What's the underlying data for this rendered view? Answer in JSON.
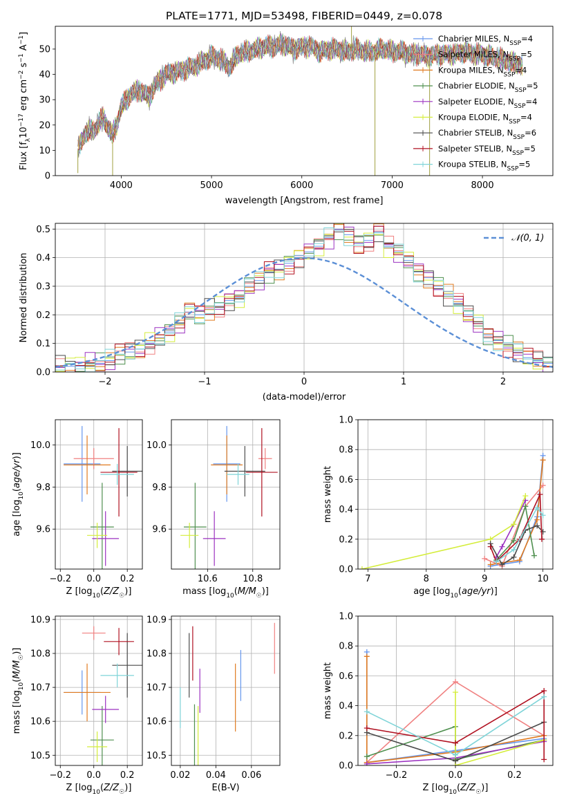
{
  "figure": {
    "title": "PLATE=1771, MJD=53498, FIBERID=0449, z=0.078",
    "colors": {
      "Chabrier MILES": "#6495ed",
      "Salpeter MILES": "#f08080",
      "Kroupa MILES": "#e07a1f",
      "Chabrier ELODIE": "#4e8f4e",
      "Salpeter ELODIE": "#9b30c0",
      "Kroupa ELODIE": "#d4ed3a",
      "Chabrier STELIB": "#4a4a4a",
      "Salpeter STELIB": "#b01020",
      "Kroupa STELIB": "#7fd4d8"
    }
  },
  "chart_data": [
    {
      "id": "spectrum",
      "type": "line",
      "title": "PLATE=1771, MJD=53498, FIBERID=0449, z=0.078",
      "xlabel": "wavelength [Angstrom, rest frame]",
      "ylabel": "Flux [f_λ10^-17 erg cm^-2 s^-1 A^-1]",
      "xlim": [
        3270,
        8780
      ],
      "ylim": [
        0,
        59
      ],
      "xticks": [
        4000,
        5000,
        6000,
        7000,
        8000
      ],
      "yticks": [
        0,
        10,
        20,
        30,
        40,
        50
      ],
      "grid": false,
      "legend_position": "top-right",
      "legend": [
        {
          "label": "Chabrier MILES, N",
          "sub": "SSP",
          "suffix": "=4",
          "color": "#6495ed"
        },
        {
          "label": "Salpeter MILES, N",
          "sub": "SSP",
          "suffix": "=5",
          "color": "#f08080"
        },
        {
          "label": "Kroupa MILES, N",
          "sub": "SSP",
          "suffix": "=4",
          "color": "#e07a1f"
        },
        {
          "label": "Chabrier ELODIE, N",
          "sub": "SSP",
          "suffix": "=5",
          "color": "#4e8f4e"
        },
        {
          "label": "Salpeter ELODIE, N",
          "sub": "SSP",
          "suffix": "=4",
          "color": "#9b30c0"
        },
        {
          "label": "Kroupa ELODIE, N",
          "sub": "SSP",
          "suffix": "=4",
          "color": "#d4ed3a"
        },
        {
          "label": "Chabrier STELIB, N",
          "sub": "SSP",
          "suffix": "=6",
          "color": "#4a4a4a"
        },
        {
          "label": "Salpeter STELIB, N",
          "sub": "SSP",
          "suffix": "=5",
          "color": "#b01020"
        },
        {
          "label": "Kroupa STELIB, N",
          "sub": "SSP",
          "suffix": "=5",
          "color": "#7fd4d8"
        }
      ],
      "data_series": {
        "name": "data",
        "color": "#7a7a7a",
        "x": [
          3520,
          3600,
          3700,
          3800,
          3900,
          3950,
          4000,
          4100,
          4200,
          4300,
          4400,
          4500,
          4600,
          4700,
          4800,
          4900,
          5000,
          5100,
          5200,
          5300,
          5400,
          5500,
          5600,
          5700,
          5800,
          5900,
          6000,
          6100,
          6200,
          6300,
          6400,
          6500,
          6600,
          6700,
          6800,
          6900,
          7000,
          7100,
          7200,
          7300,
          7400,
          7500,
          7600,
          7700,
          7800,
          7900,
          8000,
          8100,
          8200,
          8300,
          8400,
          8450
        ],
        "y": [
          10,
          17,
          18,
          23,
          16,
          20,
          27,
          32,
          34,
          31,
          37,
          40,
          41,
          42,
          43,
          45,
          47,
          46,
          43,
          48,
          49,
          50,
          51,
          51,
          52,
          50,
          51,
          51,
          49,
          50,
          50,
          49,
          50,
          49,
          49,
          50,
          49,
          49,
          48,
          48,
          47,
          48,
          48,
          48,
          49,
          48,
          48,
          47,
          46,
          45,
          44,
          43
        ]
      },
      "spikes": [
        {
          "x": 3520,
          "y": 1
        },
        {
          "x": 3905,
          "y": 0
        },
        {
          "x": 6810,
          "y": 0
        },
        {
          "x": 7415,
          "y": 0
        },
        {
          "x": 6550,
          "y": 59
        }
      ]
    },
    {
      "id": "residuals",
      "type": "line",
      "xlabel": "(data-model)/error",
      "ylabel": "Normed distribution",
      "xlim": [
        -2.5,
        2.5
      ],
      "ylim": [
        0,
        0.52
      ],
      "xticks": [
        -2,
        -1,
        0,
        1,
        2
      ],
      "yticks": [
        0.0,
        0.1,
        0.2,
        0.3,
        0.4,
        0.5
      ],
      "grid": true,
      "legend_position": "top-right",
      "reference": {
        "label": "𝒩(0, 1)",
        "color": "#5b8fd6",
        "style": "dashed",
        "mu": 0,
        "sigma": 1
      },
      "histogram_bins": {
        "start": -2.5,
        "width": 0.1,
        "count": 50
      },
      "series": [
        {
          "name": "Chabrier MILES",
          "color": "#6495ed",
          "values": [
            0.02,
            0.02,
            0.02,
            0.03,
            0.03,
            0.04,
            0.06,
            0.07,
            0.08,
            0.1,
            0.12,
            0.14,
            0.17,
            0.21,
            0.2,
            0.22,
            0.23,
            0.25,
            0.26,
            0.3,
            0.32,
            0.35,
            0.36,
            0.38,
            0.4,
            0.42,
            0.44,
            0.47,
            0.5,
            0.48,
            0.45,
            0.46,
            0.49,
            0.44,
            0.42,
            0.39,
            0.35,
            0.33,
            0.3,
            0.27,
            0.24,
            0.2,
            0.17,
            0.13,
            0.11,
            0.09,
            0.07,
            0.05,
            0.04,
            0.03
          ]
        }
      ]
    },
    {
      "id": "age-vs-Z",
      "type": "scatter",
      "xlabel": "Z [log10(Z/Z☉)]",
      "ylabel": "age  [log10(age/yr)]",
      "xlim": [
        -0.23,
        0.29
      ],
      "ylim": [
        9.41,
        10.12
      ],
      "xticks": [
        -0.2,
        0.0,
        0.2
      ],
      "yticks": [
        9.6,
        9.8,
        10.0
      ],
      "grid": true,
      "points": [
        {
          "name": "Chabrier MILES",
          "x": -0.07,
          "y": 9.91,
          "xerr": 0.11,
          "yerr": 0.18
        },
        {
          "name": "Salpeter MILES",
          "x": 0.0,
          "y": 9.935,
          "xerr": 0.12,
          "yerr": 0.05
        },
        {
          "name": "Kroupa MILES",
          "x": -0.04,
          "y": 9.905,
          "xerr": 0.14,
          "yerr": 0.14
        },
        {
          "name": "Chabrier ELODIE",
          "x": 0.05,
          "y": 9.61,
          "xerr": 0.07,
          "yerr": 0.21
        },
        {
          "name": "Salpeter ELODIE",
          "x": 0.07,
          "y": 9.555,
          "xerr": 0.08,
          "yerr": 0.13
        },
        {
          "name": "Kroupa ELODIE",
          "x": 0.02,
          "y": 9.57,
          "xerr": 0.06,
          "yerr": 0.06
        },
        {
          "name": "Chabrier STELIB",
          "x": 0.2,
          "y": 9.875,
          "xerr": 0.09,
          "yerr": 0.12
        },
        {
          "name": "Salpeter STELIB",
          "x": 0.15,
          "y": 9.87,
          "xerr": 0.11,
          "yerr": 0.21
        },
        {
          "name": "Kroupa STELIB",
          "x": 0.14,
          "y": 9.86,
          "xerr": 0.1,
          "yerr": 0.05
        }
      ]
    },
    {
      "id": "age-vs-mass",
      "type": "scatter",
      "xlabel": "mass [log10(M/M☉)]",
      "ylabel": "",
      "xlim": [
        10.44,
        10.92
      ],
      "ylim": [
        9.41,
        10.12
      ],
      "xticks": [
        10.6,
        10.8
      ],
      "yticks": [
        9.6,
        9.8,
        10.0
      ],
      "grid": true,
      "points": [
        {
          "name": "Chabrier MILES",
          "x": 10.685,
          "y": 9.91,
          "xerr": 0.06,
          "yerr": 0.18
        },
        {
          "name": "Salpeter MILES",
          "x": 10.855,
          "y": 9.935,
          "xerr": 0.03,
          "yerr": 0.05
        },
        {
          "name": "Kroupa MILES",
          "x": 10.685,
          "y": 9.905,
          "xerr": 0.07,
          "yerr": 0.14
        },
        {
          "name": "Chabrier ELODIE",
          "x": 10.545,
          "y": 9.61,
          "xerr": 0.05,
          "yerr": 0.21
        },
        {
          "name": "Salpeter ELODIE",
          "x": 10.63,
          "y": 9.555,
          "xerr": 0.05,
          "yerr": 0.13
        },
        {
          "name": "Kroupa ELODIE",
          "x": 10.52,
          "y": 9.57,
          "xerr": 0.04,
          "yerr": 0.06
        },
        {
          "name": "Chabrier STELIB",
          "x": 10.765,
          "y": 9.875,
          "xerr": 0.09,
          "yerr": 0.12
        },
        {
          "name": "Salpeter STELIB",
          "x": 10.84,
          "y": 9.87,
          "xerr": 0.07,
          "yerr": 0.21
        },
        {
          "name": "Kroupa STELIB",
          "x": 10.735,
          "y": 9.86,
          "xerr": 0.05,
          "yerr": 0.05
        }
      ]
    },
    {
      "id": "mass-weight-vs-age",
      "type": "line",
      "xlabel": "age  [log10(age/yr)]",
      "ylabel": "mass weight",
      "xlim": [
        6.83,
        10.17
      ],
      "ylim": [
        0,
        1.0
      ],
      "xticks": [
        7,
        8,
        9,
        10
      ],
      "yticks": [
        0.0,
        0.2,
        0.4,
        0.6,
        0.8,
        1.0
      ],
      "grid": true,
      "series": [
        {
          "name": "Chabrier MILES",
          "x": [
            9.1,
            9.6,
            9.9,
            10.0
          ],
          "values": [
            0.02,
            0.05,
            0.35,
            0.76
          ]
        },
        {
          "name": "Salpeter MILES",
          "x": [
            9.0,
            9.3,
            9.7,
            10.0
          ],
          "values": [
            0.07,
            0.02,
            0.42,
            0.56
          ]
        },
        {
          "name": "Kroupa MILES",
          "x": [
            9.1,
            9.6,
            9.9,
            10.0
          ],
          "values": [
            0.03,
            0.06,
            0.33,
            0.73
          ]
        },
        {
          "name": "Chabrier ELODIE",
          "x": [
            9.2,
            9.5,
            9.7,
            9.85
          ],
          "values": [
            0.06,
            0.19,
            0.42,
            0.09
          ]
        },
        {
          "name": "Salpeter ELODIE",
          "x": [
            9.2,
            9.3,
            9.5,
            9.7
          ],
          "values": [
            0.08,
            0.15,
            0.3,
            0.46
          ]
        },
        {
          "name": "Kroupa ELODIE",
          "x": [
            6.9,
            9.1,
            9.5,
            9.7
          ],
          "values": [
            0.0,
            0.2,
            0.3,
            0.49
          ]
        },
        {
          "name": "Chabrier STELIB",
          "x": [
            9.1,
            9.3,
            9.5,
            9.7,
            9.9,
            10.0
          ],
          "values": [
            0.17,
            0.03,
            0.08,
            0.26,
            0.29,
            0.25
          ]
        },
        {
          "name": "Salpeter STELIB",
          "x": [
            9.1,
            9.2,
            9.6,
            9.95,
            9.98
          ],
          "values": [
            0.15,
            0.05,
            0.2,
            0.5,
            0.2
          ]
        },
        {
          "name": "Kroupa STELIB",
          "x": [
            9.2,
            9.5,
            9.9,
            10.0
          ],
          "values": [
            0.05,
            0.13,
            0.41,
            0.36
          ]
        }
      ]
    },
    {
      "id": "mass-vs-Z",
      "type": "scatter",
      "xlabel": "Z [log10(Z/Z☉)]",
      "ylabel": "mass [log10(M/M☉)]",
      "xlim": [
        -0.23,
        0.29
      ],
      "ylim": [
        10.47,
        10.91
      ],
      "xticks": [
        -0.2,
        0.0,
        0.2
      ],
      "yticks": [
        10.5,
        10.6,
        10.7,
        10.8,
        10.9
      ],
      "grid": true,
      "points": [
        {
          "name": "Chabrier MILES",
          "x": -0.07,
          "y": 10.685,
          "xerr": 0.11,
          "yerr": 0.065
        },
        {
          "name": "Salpeter MILES",
          "x": 0.0,
          "y": 10.86,
          "xerr": 0.07,
          "yerr": 0.02
        },
        {
          "name": "Kroupa MILES",
          "x": -0.04,
          "y": 10.685,
          "xerr": 0.14,
          "yerr": 0.085
        },
        {
          "name": "Chabrier ELODIE",
          "x": 0.05,
          "y": 10.545,
          "xerr": 0.07,
          "yerr": 0.1
        },
        {
          "name": "Salpeter ELODIE",
          "x": 0.07,
          "y": 10.635,
          "xerr": 0.08,
          "yerr": 0.04
        },
        {
          "name": "Kroupa ELODIE",
          "x": 0.02,
          "y": 10.525,
          "xerr": 0.06,
          "yerr": 0.045
        },
        {
          "name": "Chabrier STELIB",
          "x": 0.2,
          "y": 10.765,
          "xerr": 0.09,
          "yerr": 0.095
        },
        {
          "name": "Salpeter STELIB",
          "x": 0.15,
          "y": 10.835,
          "xerr": 0.09,
          "yerr": 0.04
        },
        {
          "name": "Kroupa STELIB",
          "x": 0.14,
          "y": 10.735,
          "xerr": 0.1,
          "yerr": 0.035
        }
      ]
    },
    {
      "id": "mass-vs-EBV",
      "type": "scatter",
      "xlabel": "E(B-V)",
      "ylabel": "",
      "xlim": [
        0.015,
        0.076
      ],
      "ylim": [
        10.47,
        10.91
      ],
      "xticks": [
        0.02,
        0.04,
        0.06
      ],
      "yticks": [
        10.5,
        10.6,
        10.7,
        10.8,
        10.9
      ],
      "grid": true,
      "points": [
        {
          "name": "Chabrier MILES",
          "x": 0.054,
          "y": 10.735,
          "xerr": 0,
          "yerr": 0.075
        },
        {
          "name": "Salpeter MILES",
          "x": 0.073,
          "y": 10.815,
          "xerr": 0,
          "yerr": 0.075
        },
        {
          "name": "Kroupa MILES",
          "x": 0.051,
          "y": 10.67,
          "xerr": 0,
          "yerr": 0.1
        },
        {
          "name": "Chabrier ELODIE",
          "x": 0.028,
          "y": 10.56,
          "xerr": 0,
          "yerr": 0.09
        },
        {
          "name": "Salpeter ELODIE",
          "x": 0.031,
          "y": 10.69,
          "xerr": 0,
          "yerr": 0.065
        },
        {
          "name": "Kroupa ELODIE",
          "x": 0.03,
          "y": 10.545,
          "xerr": 0,
          "yerr": 0.1
        },
        {
          "name": "Chabrier STELIB",
          "x": 0.025,
          "y": 10.765,
          "xerr": 0,
          "yerr": 0.095
        },
        {
          "name": "Salpeter STELIB",
          "x": 0.027,
          "y": 10.8,
          "xerr": 0,
          "yerr": 0.08
        },
        {
          "name": "Kroupa STELIB",
          "x": 0.02,
          "y": 10.64,
          "xerr": 0,
          "yerr": 0.06
        }
      ]
    },
    {
      "id": "mass-weight-vs-Z",
      "type": "line",
      "xlabel": "Z [log10(Z/Z☉)]",
      "ylabel": "mass weight",
      "xlim": [
        -0.33,
        0.33
      ],
      "ylim": [
        0,
        1.0
      ],
      "xticks": [
        -0.2,
        0.0,
        0.2
      ],
      "yticks": [
        0.0,
        0.2,
        0.4,
        0.6,
        0.8,
        1.0
      ],
      "grid": true,
      "series": [
        {
          "name": "Chabrier MILES",
          "x": [
            -0.3,
            -0.3,
            0.0,
            0.3
          ],
          "values": [
            0.76,
            0.02,
            0.1,
            0.18
          ]
        },
        {
          "name": "Salpeter MILES",
          "x": [
            -0.3,
            0.0,
            0.3
          ],
          "values": [
            0.02,
            0.56,
            0.2
          ]
        },
        {
          "name": "Kroupa MILES",
          "x": [
            -0.3,
            -0.3,
            0.0,
            0.3
          ],
          "values": [
            0.73,
            0.02,
            0.09,
            0.2
          ]
        },
        {
          "name": "Chabrier ELODIE",
          "x": [
            -0.3,
            0.0,
            0.0,
            0.3
          ],
          "values": [
            0.06,
            0.26,
            0.04,
            0.17
          ]
        },
        {
          "name": "Salpeter ELODIE",
          "x": [
            -0.3,
            0.0,
            0.3
          ],
          "values": [
            0.01,
            0.05,
            0.16
          ]
        },
        {
          "name": "Kroupa ELODIE",
          "x": [
            0.0,
            0.0,
            0.3
          ],
          "values": [
            0.49,
            0.0,
            0.17
          ]
        },
        {
          "name": "Chabrier STELIB",
          "x": [
            -0.3,
            0.0,
            0.3
          ],
          "values": [
            0.22,
            0.03,
            0.29
          ]
        },
        {
          "name": "Salpeter STELIB",
          "x": [
            -0.3,
            0.0,
            0.3,
            0.3
          ],
          "values": [
            0.25,
            0.15,
            0.5,
            0.04
          ]
        },
        {
          "name": "Kroupa STELIB",
          "x": [
            -0.3,
            0.0,
            0.3
          ],
          "values": [
            0.36,
            0.07,
            0.46
          ]
        }
      ]
    }
  ]
}
